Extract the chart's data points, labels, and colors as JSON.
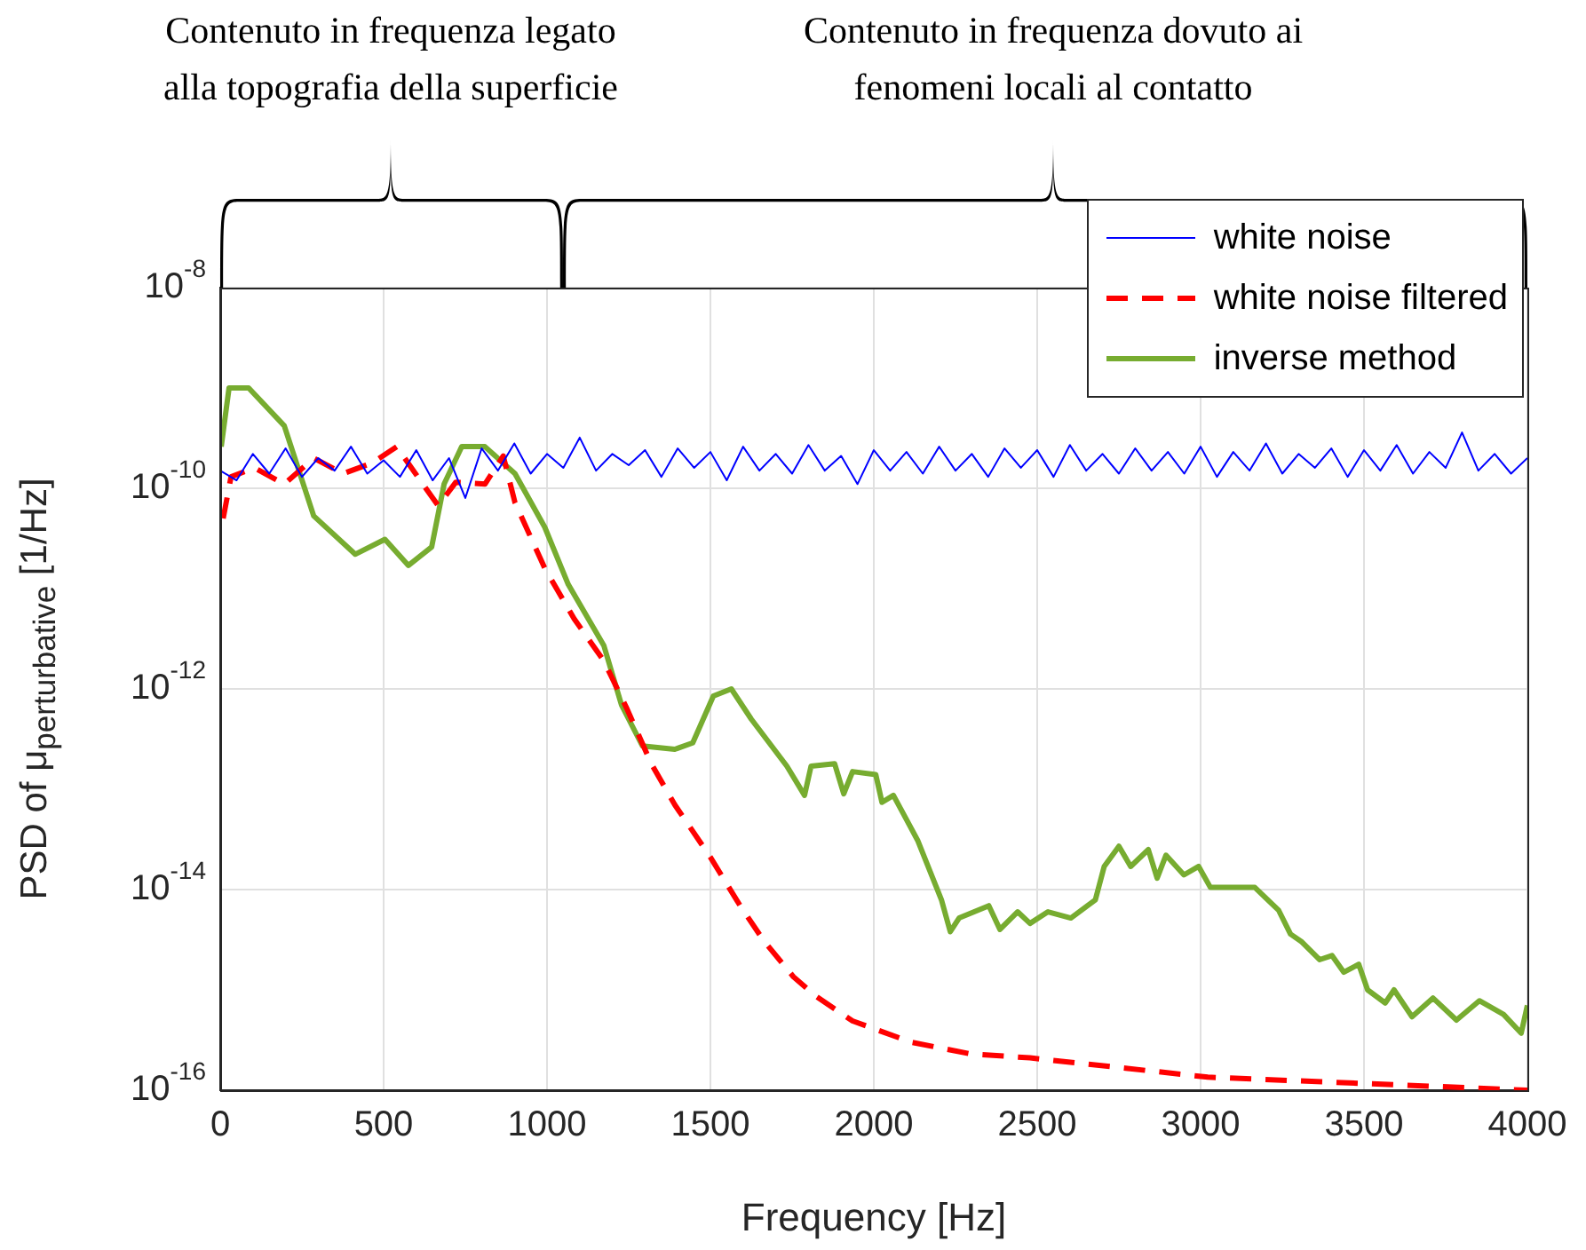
{
  "chart_data": {
    "type": "line",
    "xlabel": "Frequency [Hz]",
    "ylabel": "PSD of μ$_{perturbative}$ [1/Hz]",
    "annotations": [
      "Contenuto in frequenza legato\nalla topografia della superficie",
      "Contenuto in frequenza dovuto ai\nfenomeni locali al contatto"
    ],
    "xlim": [
      0,
      4000
    ],
    "xticks": [
      0,
      500,
      1000,
      1500,
      2000,
      2500,
      3000,
      3500,
      4000
    ],
    "ylim": [
      1e-16,
      1e-08
    ],
    "yticks": [
      {
        "value": 1e-16,
        "label": "10$^{-16}$"
      },
      {
        "value": 1e-14,
        "label": "10$^{-14}$"
      },
      {
        "value": 1e-12,
        "label": "10$^{-12}$"
      },
      {
        "value": 1e-10,
        "label": "10$^{-10}$"
      },
      {
        "value": 1e-08,
        "label": "10$^{-8}$"
      }
    ],
    "log": "y",
    "grid": true,
    "legend": "top right",
    "marker": "none",
    "series": [
      {
        "name": "white noise",
        "color": "#0000ff",
        "line_style": "solid",
        "x": [
          0,
          50,
          100,
          150,
          200,
          250,
          300,
          350,
          400,
          450,
          500,
          550,
          600,
          650,
          700,
          750,
          800,
          850,
          900,
          950,
          1000,
          1050,
          1100,
          1150,
          1200,
          1250,
          1300,
          1350,
          1400,
          1450,
          1500,
          1550,
          1600,
          1650,
          1700,
          1750,
          1800,
          1850,
          1900,
          1950,
          2000,
          2050,
          2100,
          2150,
          2200,
          2250,
          2300,
          2350,
          2400,
          2450,
          2500,
          2550,
          2600,
          2650,
          2700,
          2750,
          2800,
          2850,
          2900,
          2950,
          3000,
          3050,
          3100,
          3150,
          3200,
          3250,
          3300,
          3350,
          3400,
          3450,
          3500,
          3550,
          3600,
          3650,
          3700,
          3750,
          3800,
          3850,
          3900,
          3950,
          4000
        ],
        "values": [
          1.5e-10,
          1.2e-10,
          2.2e-10,
          1.4e-10,
          2.5e-10,
          1.3e-10,
          2e-10,
          1.5e-10,
          2.6e-10,
          1.4e-10,
          1.9e-10,
          1.3e-10,
          2.4e-10,
          1.2e-10,
          2e-10,
          8e-11,
          2.5e-10,
          1.5e-10,
          2.8e-10,
          1.4e-10,
          2.2e-10,
          1.6e-10,
          3.2e-10,
          1.5e-10,
          2.2e-10,
          1.7e-10,
          2.4e-10,
          1.3e-10,
          2.5e-10,
          1.6e-10,
          2.3e-10,
          1.2e-10,
          2.6e-10,
          1.5e-10,
          2.2e-10,
          1.4e-10,
          2.7e-10,
          1.5e-10,
          2.1e-10,
          1.1e-10,
          2.4e-10,
          1.5e-10,
          2.3e-10,
          1.4e-10,
          2.6e-10,
          1.5e-10,
          2.2e-10,
          1.3e-10,
          2.5e-10,
          1.6e-10,
          2.4e-10,
          1.3e-10,
          2.7e-10,
          1.5e-10,
          2.2e-10,
          1.4e-10,
          2.5e-10,
          1.5e-10,
          2.3e-10,
          1.4e-10,
          2.6e-10,
          1.3e-10,
          2.3e-10,
          1.5e-10,
          2.8e-10,
          1.4e-10,
          2.2e-10,
          1.6e-10,
          2.5e-10,
          1.3e-10,
          2.4e-10,
          1.5e-10,
          2.7e-10,
          1.4e-10,
          2.3e-10,
          1.6e-10,
          3.6e-10,
          1.5e-10,
          2.2e-10,
          1.4e-10,
          2e-10
        ]
      },
      {
        "name": "white noise filtered",
        "color": "#ff0000",
        "line_style": "dashed",
        "x": [
          9,
          33,
          105,
          196,
          286,
          376,
          467,
          540,
          612,
          667,
          721,
          810,
          866,
          902,
          993,
          1083,
          1174,
          1245,
          1319,
          1391,
          1500,
          1591,
          1663,
          1754,
          1826,
          1935,
          2116,
          2297,
          2478,
          3022,
          4000
        ],
        "values": [
          5e-11,
          1.3e-10,
          1.6e-10,
          1.1e-10,
          2e-10,
          1.4e-10,
          1.8e-10,
          2.6e-10,
          1.2e-10,
          6.7e-11,
          1.15e-10,
          1.1e-10,
          2.1e-10,
          7.2e-11,
          1.6e-11,
          5e-12,
          1.9e-12,
          6.3e-13,
          1.8e-13,
          7e-14,
          2.1e-14,
          6.9e-15,
          3.1e-15,
          1.35e-15,
          8.5e-16,
          4.9e-16,
          3e-16,
          2.3e-16,
          2.1e-16,
          1.35e-16,
          1e-16
        ]
      },
      {
        "name": "inverse method",
        "color": "#77ac30",
        "line_style": "solid",
        "x": [
          3,
          27,
          87,
          196,
          286,
          413,
          504,
          576,
          647,
          685,
          739,
          810,
          902,
          993,
          1065,
          1174,
          1228,
          1292,
          1391,
          1446,
          1509,
          1564,
          1625,
          1734,
          1788,
          1808,
          1880,
          1908,
          1935,
          2006,
          2025,
          2060,
          2134,
          2207,
          2234,
          2261,
          2352,
          2386,
          2440,
          2478,
          2533,
          2603,
          2678,
          2705,
          2750,
          2786,
          2840,
          2867,
          2894,
          2949,
          2994,
          3030,
          3166,
          3239,
          3275,
          3310,
          3364,
          3402,
          3438,
          3484,
          3511,
          3565,
          3592,
          3647,
          3711,
          3783,
          3853,
          3927,
          3981,
          4000
        ],
        "values": [
          2.6e-10,
          1e-09,
          1e-09,
          4.2e-10,
          5.3e-11,
          2.2e-11,
          3.1e-11,
          1.7e-11,
          2.6e-11,
          1.1e-10,
          2.6e-10,
          2.6e-10,
          1.4e-10,
          4.1e-11,
          1.1e-11,
          2.7e-12,
          6.9e-13,
          2.7e-13,
          2.5e-13,
          2.9e-13,
          8.5e-13,
          1e-12,
          5e-13,
          1.7e-13,
          8.7e-14,
          1.7e-13,
          1.8e-13,
          9e-14,
          1.5e-13,
          1.4e-13,
          7.4e-14,
          8.7e-14,
          3.1e-14,
          7.9e-15,
          3.8e-15,
          5.2e-15,
          6.9e-15,
          4e-15,
          6e-15,
          4.6e-15,
          6e-15,
          5.2e-15,
          7.9e-15,
          1.7e-14,
          2.7e-14,
          1.7e-14,
          2.5e-14,
          1.3e-14,
          2.2e-14,
          1.4e-14,
          1.7e-14,
          1.05e-14,
          1.05e-14,
          6.2e-15,
          3.6e-15,
          3e-15,
          2e-15,
          2.2e-15,
          1.5e-15,
          1.8e-15,
          1e-15,
          7.4e-16,
          1e-15,
          5.4e-16,
          8.3e-16,
          5e-16,
          7.8e-16,
          5.7e-16,
          3.7e-16,
          7e-16
        ]
      }
    ]
  }
}
